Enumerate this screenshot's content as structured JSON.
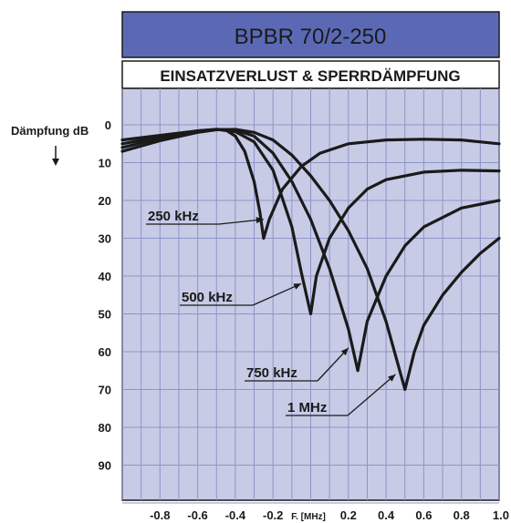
{
  "chart_data": {
    "type": "line",
    "title": "BPBR 70/2-250",
    "subtitle": "EINSATZVERLUST & SPERRDÄMPFUNG",
    "ylabel": "Dämpfung dB",
    "xlabel": "F. [MHz]",
    "xlim": [
      -1.0,
      1.0
    ],
    "ylim": [
      0,
      100
    ],
    "y_inverted": true,
    "grid": true,
    "y_ticks": [
      0,
      10,
      20,
      30,
      40,
      50,
      60,
      70,
      80,
      90
    ],
    "x_ticks": [
      -0.8,
      -0.6,
      -0.4,
      -0.2,
      0.2,
      0.4,
      0.6,
      0.8,
      1.0
    ],
    "x_tick_labels": [
      "-0.8",
      "-0.6",
      "-0.4",
      "-0.2",
      "0.2",
      "0.4",
      "0.6",
      "0.8",
      "1.0"
    ],
    "series": [
      {
        "name": "250 kHz",
        "x": [
          -1.0,
          -0.8,
          -0.6,
          -0.5,
          -0.45,
          -0.4,
          -0.35,
          -0.3,
          -0.27,
          -0.25,
          -0.22,
          -0.15,
          -0.05,
          0.05,
          0.2,
          0.4,
          0.6,
          0.8,
          1.0
        ],
        "y": [
          4,
          2.8,
          1.6,
          1.2,
          1.4,
          3,
          7,
          15,
          23,
          30,
          25,
          17,
          11,
          7.5,
          5,
          4,
          3.8,
          4,
          5
        ]
      },
      {
        "name": "500 kHz",
        "x": [
          -1.0,
          -0.8,
          -0.6,
          -0.5,
          -0.4,
          -0.3,
          -0.2,
          -0.1,
          -0.05,
          0.0,
          0.03,
          0.1,
          0.2,
          0.3,
          0.4,
          0.6,
          0.8,
          1.0
        ],
        "y": [
          5,
          3.2,
          1.6,
          1.2,
          1.8,
          4.5,
          12,
          27,
          39,
          50,
          40,
          30,
          22,
          17,
          14.5,
          12.5,
          12,
          12.2
        ]
      },
      {
        "name": "750 kHz",
        "x": [
          -1.0,
          -0.8,
          -0.6,
          -0.5,
          -0.4,
          -0.3,
          -0.2,
          -0.1,
          0.0,
          0.1,
          0.2,
          0.25,
          0.3,
          0.4,
          0.5,
          0.6,
          0.8,
          1.0
        ],
        "y": [
          6,
          3.6,
          1.8,
          1.2,
          1.4,
          3,
          7.5,
          15,
          25,
          38,
          54,
          65,
          52,
          40,
          32,
          27,
          22,
          20
        ]
      },
      {
        "name": "1 MHz",
        "x": [
          -1.0,
          -0.8,
          -0.6,
          -0.5,
          -0.4,
          -0.3,
          -0.2,
          -0.1,
          0.0,
          0.1,
          0.2,
          0.3,
          0.4,
          0.5,
          0.55,
          0.6,
          0.7,
          0.8,
          0.9,
          1.0
        ],
        "y": [
          7,
          4.2,
          2,
          1.3,
          1.2,
          2,
          4,
          8,
          13.5,
          20,
          28,
          38,
          52,
          70,
          60,
          53,
          45,
          39,
          34,
          30
        ]
      }
    ],
    "annotations": [
      {
        "text": "250 kHz",
        "series": "250 kHz",
        "points_to": [
          -0.25,
          25
        ]
      },
      {
        "text": "500 kHz",
        "series": "500 kHz",
        "points_to": [
          -0.05,
          42
        ]
      },
      {
        "text": "750 kHz",
        "series": "750 kHz",
        "points_to": [
          0.2,
          59
        ]
      },
      {
        "text": "1 MHz",
        "series": "1 MHz",
        "points_to": [
          0.45,
          66
        ]
      }
    ],
    "colors": {
      "title_band": "#5b69b5",
      "plot_background": "#c7cbe6",
      "grid": "#8e95c6",
      "lines": "#1a1a1a"
    }
  }
}
